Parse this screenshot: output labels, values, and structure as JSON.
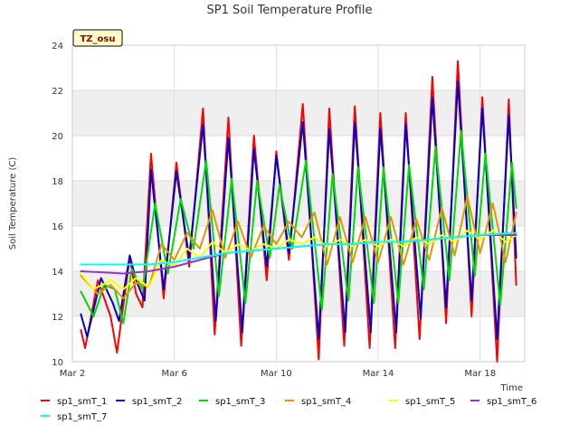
{
  "chart_data": {
    "type": "line",
    "title": "SP1 Soil Temperature Profile",
    "xlabel": "Time",
    "ylabel": "Soil Temperature (C)",
    "ylim": [
      10,
      24
    ],
    "yticks": [
      "10",
      "12",
      "14",
      "16",
      "18",
      "20",
      "22",
      "24"
    ],
    "xlim": [
      "2024-03-02",
      "2024-03-19 18:00"
    ],
    "xticks": [
      {
        "date": "2024-03-02",
        "label": "Mar 2"
      },
      {
        "date": "2024-03-06",
        "label": "Mar 6"
      },
      {
        "date": "2024-03-10",
        "label": "Mar 10"
      },
      {
        "date": "2024-03-14",
        "label": "Mar 14"
      },
      {
        "date": "2024-03-18",
        "label": "Mar 18"
      }
    ],
    "grid": "horizontal bands",
    "legend_position": "bottom",
    "badge": "TZ_osu",
    "series": [
      {
        "name": "sp1_smT_1",
        "color": "#ff0000",
        "data": [
          [
            "2024-03-02 08:00",
            11.4
          ],
          [
            "2024-03-02 12:00",
            10.6
          ],
          [
            "2024-03-03 00:00",
            13.6
          ],
          [
            "2024-03-03 12:00",
            12.0
          ],
          [
            "2024-03-03 18:00",
            10.4
          ],
          [
            "2024-03-04 06:00",
            14.6
          ],
          [
            "2024-03-04 12:00",
            13.0
          ],
          [
            "2024-03-04 18:00",
            12.4
          ],
          [
            "2024-03-05 02:00",
            19.2
          ],
          [
            "2024-03-05 14:00",
            12.8
          ],
          [
            "2024-03-06 02:00",
            18.8
          ],
          [
            "2024-03-06 14:00",
            14.2
          ],
          [
            "2024-03-07 03:00",
            21.2
          ],
          [
            "2024-03-07 14:00",
            11.2
          ],
          [
            "2024-03-08 03:00",
            20.8
          ],
          [
            "2024-03-08 15:00",
            10.7
          ],
          [
            "2024-03-09 03:00",
            20.0
          ],
          [
            "2024-03-09 15:00",
            13.6
          ],
          [
            "2024-03-10 00:00",
            19.3
          ],
          [
            "2024-03-10 12:00",
            14.5
          ],
          [
            "2024-03-11 01:00",
            21.4
          ],
          [
            "2024-03-11 16:00",
            10.1
          ],
          [
            "2024-03-12 02:00",
            21.2
          ],
          [
            "2024-03-12 16:00",
            10.7
          ],
          [
            "2024-03-13 02:00",
            21.3
          ],
          [
            "2024-03-13 16:00",
            10.6
          ],
          [
            "2024-03-14 02:00",
            21.0
          ],
          [
            "2024-03-14 16:00",
            10.6
          ],
          [
            "2024-03-15 02:00",
            21.0
          ],
          [
            "2024-03-15 15:00",
            11.0
          ],
          [
            "2024-03-16 03:00",
            22.6
          ],
          [
            "2024-03-16 16:00",
            11.7
          ],
          [
            "2024-03-17 03:00",
            23.3
          ],
          [
            "2024-03-17 16:00",
            12.0
          ],
          [
            "2024-03-18 02:00",
            21.7
          ],
          [
            "2024-03-18 16:00",
            10.0
          ],
          [
            "2024-03-19 03:00",
            21.6
          ],
          [
            "2024-03-19 10:00",
            13.4
          ]
        ]
      },
      {
        "name": "sp1_smT_2",
        "color": "#0000cc",
        "data": [
          [
            "2024-03-02 08:00",
            12.1
          ],
          [
            "2024-03-02 14:00",
            11.1
          ],
          [
            "2024-03-03 03:00",
            13.7
          ],
          [
            "2024-03-03 14:00",
            12.6
          ],
          [
            "2024-03-03 20:00",
            11.8
          ],
          [
            "2024-03-04 06:00",
            14.7
          ],
          [
            "2024-03-04 12:00",
            13.6
          ],
          [
            "2024-03-04 20:00",
            12.7
          ],
          [
            "2024-03-05 02:00",
            18.5
          ],
          [
            "2024-03-05 14:00",
            13.2
          ],
          [
            "2024-03-06 02:00",
            18.4
          ],
          [
            "2024-03-06 14:00",
            14.6
          ],
          [
            "2024-03-07 03:00",
            20.5
          ],
          [
            "2024-03-07 15:00",
            11.8
          ],
          [
            "2024-03-08 03:00",
            19.9
          ],
          [
            "2024-03-08 16:00",
            11.3
          ],
          [
            "2024-03-09 03:00",
            19.4
          ],
          [
            "2024-03-09 15:00",
            14.2
          ],
          [
            "2024-03-10 00:00",
            19.1
          ],
          [
            "2024-03-10 12:00",
            14.8
          ],
          [
            "2024-03-11 01:00",
            20.6
          ],
          [
            "2024-03-11 16:00",
            11.0
          ],
          [
            "2024-03-12 02:00",
            20.3
          ],
          [
            "2024-03-12 17:00",
            11.3
          ],
          [
            "2024-03-13 02:00",
            20.6
          ],
          [
            "2024-03-13 17:00",
            11.3
          ],
          [
            "2024-03-14 02:00",
            20.3
          ],
          [
            "2024-03-14 17:00",
            11.3
          ],
          [
            "2024-03-15 02:00",
            20.5
          ],
          [
            "2024-03-15 16:00",
            11.9
          ],
          [
            "2024-03-16 03:00",
            21.7
          ],
          [
            "2024-03-16 16:00",
            12.4
          ],
          [
            "2024-03-17 03:00",
            22.4
          ],
          [
            "2024-03-17 16:00",
            12.7
          ],
          [
            "2024-03-18 02:00",
            21.2
          ],
          [
            "2024-03-18 16:00",
            11.0
          ],
          [
            "2024-03-19 03:00",
            20.9
          ],
          [
            "2024-03-19 10:00",
            14.6
          ]
        ]
      },
      {
        "name": "sp1_smT_3",
        "color": "#00dd00",
        "data": [
          [
            "2024-03-02 08:00",
            13.1
          ],
          [
            "2024-03-02 20:00",
            12.0
          ],
          [
            "2024-03-03 06:00",
            13.4
          ],
          [
            "2024-03-03 16:00",
            13.2
          ],
          [
            "2024-03-04 00:00",
            11.7
          ],
          [
            "2024-03-04 08:00",
            14.1
          ],
          [
            "2024-03-04 18:00",
            13.2
          ],
          [
            "2024-03-05 06:00",
            17.0
          ],
          [
            "2024-03-05 18:00",
            13.9
          ],
          [
            "2024-03-06 06:00",
            17.2
          ],
          [
            "2024-03-06 18:00",
            15.0
          ],
          [
            "2024-03-07 06:00",
            18.9
          ],
          [
            "2024-03-07 18:00",
            12.9
          ],
          [
            "2024-03-08 06:00",
            18.1
          ],
          [
            "2024-03-08 19:00",
            12.6
          ],
          [
            "2024-03-09 06:00",
            18.0
          ],
          [
            "2024-03-09 18:00",
            14.6
          ],
          [
            "2024-03-10 03:00",
            17.8
          ],
          [
            "2024-03-10 15:00",
            15.0
          ],
          [
            "2024-03-11 04:00",
            18.9
          ],
          [
            "2024-03-11 19:00",
            12.3
          ],
          [
            "2024-03-12 05:00",
            18.3
          ],
          [
            "2024-03-12 20:00",
            12.7
          ],
          [
            "2024-03-13 05:00",
            18.6
          ],
          [
            "2024-03-13 20:00",
            12.6
          ],
          [
            "2024-03-14 05:00",
            18.6
          ],
          [
            "2024-03-14 19:00",
            12.6
          ],
          [
            "2024-03-15 05:00",
            18.7
          ],
          [
            "2024-03-15 19:00",
            13.2
          ],
          [
            "2024-03-16 06:00",
            19.5
          ],
          [
            "2024-03-16 19:00",
            13.6
          ],
          [
            "2024-03-17 06:00",
            20.2
          ],
          [
            "2024-03-17 19:00",
            13.8
          ],
          [
            "2024-03-18 05:00",
            19.2
          ],
          [
            "2024-03-18 19:00",
            12.5
          ],
          [
            "2024-03-19 06:00",
            18.8
          ],
          [
            "2024-03-19 10:00",
            16.8
          ]
        ]
      },
      {
        "name": "sp1_smT_4",
        "color": "#e69500",
        "data": [
          [
            "2024-03-02 08:00",
            13.8
          ],
          [
            "2024-03-03 00:00",
            13.0
          ],
          [
            "2024-03-03 12:00",
            13.4
          ],
          [
            "2024-03-04 00:00",
            12.8
          ],
          [
            "2024-03-04 12:00",
            13.5
          ],
          [
            "2024-03-05 00:00",
            13.3
          ],
          [
            "2024-03-05 12:00",
            15.2
          ],
          [
            "2024-03-06 00:00",
            14.5
          ],
          [
            "2024-03-06 12:00",
            15.7
          ],
          [
            "2024-03-07 00:00",
            15.0
          ],
          [
            "2024-03-07 12:00",
            16.7
          ],
          [
            "2024-03-08 00:00",
            14.6
          ],
          [
            "2024-03-08 12:00",
            16.2
          ],
          [
            "2024-03-09 00:00",
            14.6
          ],
          [
            "2024-03-09 12:00",
            16.0
          ],
          [
            "2024-03-10 00:00",
            15.2
          ],
          [
            "2024-03-10 12:00",
            16.2
          ],
          [
            "2024-03-11 00:00",
            15.5
          ],
          [
            "2024-03-11 12:00",
            16.6
          ],
          [
            "2024-03-12 00:00",
            14.3
          ],
          [
            "2024-03-12 12:00",
            16.4
          ],
          [
            "2024-03-13 00:00",
            14.4
          ],
          [
            "2024-03-13 12:00",
            16.4
          ],
          [
            "2024-03-14 00:00",
            14.4
          ],
          [
            "2024-03-14 12:00",
            16.4
          ],
          [
            "2024-03-15 00:00",
            14.3
          ],
          [
            "2024-03-15 12:00",
            16.3
          ],
          [
            "2024-03-16 00:00",
            14.5
          ],
          [
            "2024-03-16 12:00",
            16.8
          ],
          [
            "2024-03-17 00:00",
            14.7
          ],
          [
            "2024-03-17 12:00",
            17.3
          ],
          [
            "2024-03-18 00:00",
            14.8
          ],
          [
            "2024-03-18 12:00",
            17.0
          ],
          [
            "2024-03-19 00:00",
            14.4
          ],
          [
            "2024-03-19 10:00",
            16.6
          ]
        ]
      },
      {
        "name": "sp1_smT_5",
        "color": "#ffff00",
        "data": [
          [
            "2024-03-02 08:00",
            13.9
          ],
          [
            "2024-03-02 20:00",
            13.2
          ],
          [
            "2024-03-03 12:00",
            13.6
          ],
          [
            "2024-03-04 00:00",
            13.2
          ],
          [
            "2024-03-04 12:00",
            13.7
          ],
          [
            "2024-03-05 00:00",
            13.3
          ],
          [
            "2024-03-05 12:00",
            14.5
          ],
          [
            "2024-03-06 00:00",
            14.2
          ],
          [
            "2024-03-06 12:00",
            15.0
          ],
          [
            "2024-03-07 00:00",
            14.6
          ],
          [
            "2024-03-07 12:00",
            15.3
          ],
          [
            "2024-03-08 00:00",
            14.8
          ],
          [
            "2024-03-08 12:00",
            15.2
          ],
          [
            "2024-03-09 00:00",
            14.9
          ],
          [
            "2024-03-09 12:00",
            15.2
          ],
          [
            "2024-03-10 00:00",
            15.0
          ],
          [
            "2024-03-10 12:00",
            15.4
          ],
          [
            "2024-03-11 00:00",
            15.2
          ],
          [
            "2024-03-11 12:00",
            15.5
          ],
          [
            "2024-03-12 00:00",
            15.1
          ],
          [
            "2024-03-12 12:00",
            15.4
          ],
          [
            "2024-03-13 00:00",
            15.1
          ],
          [
            "2024-03-13 12:00",
            15.4
          ],
          [
            "2024-03-14 00:00",
            15.1
          ],
          [
            "2024-03-14 12:00",
            15.4
          ],
          [
            "2024-03-15 00:00",
            15.1
          ],
          [
            "2024-03-15 12:00",
            15.5
          ],
          [
            "2024-03-16 00:00",
            15.2
          ],
          [
            "2024-03-16 12:00",
            15.6
          ],
          [
            "2024-03-17 00:00",
            15.3
          ],
          [
            "2024-03-17 12:00",
            15.8
          ],
          [
            "2024-03-18 00:00",
            15.4
          ],
          [
            "2024-03-18 12:00",
            15.8
          ],
          [
            "2024-03-19 00:00",
            15.3
          ],
          [
            "2024-03-19 10:00",
            15.6
          ]
        ]
      },
      {
        "name": "sp1_smT_6",
        "color": "#9933cc",
        "data": [
          [
            "2024-03-02 08:00",
            14.0
          ],
          [
            "2024-03-04 00:00",
            13.9
          ],
          [
            "2024-03-05 00:00",
            14.0
          ],
          [
            "2024-03-06 00:00",
            14.2
          ],
          [
            "2024-03-07 00:00",
            14.5
          ],
          [
            "2024-03-08 00:00",
            14.8
          ],
          [
            "2024-03-09 00:00",
            14.9
          ],
          [
            "2024-03-10 00:00",
            15.0
          ],
          [
            "2024-03-11 00:00",
            15.1
          ],
          [
            "2024-03-12 00:00",
            15.2
          ],
          [
            "2024-03-13 00:00",
            15.2
          ],
          [
            "2024-03-14 00:00",
            15.3
          ],
          [
            "2024-03-15 00:00",
            15.3
          ],
          [
            "2024-03-16 00:00",
            15.4
          ],
          [
            "2024-03-17 00:00",
            15.5
          ],
          [
            "2024-03-18 00:00",
            15.6
          ],
          [
            "2024-03-19 10:00",
            15.6
          ]
        ]
      },
      {
        "name": "sp1_smT_7",
        "color": "#00ffff",
        "data": [
          [
            "2024-03-02 08:00",
            14.3
          ],
          [
            "2024-03-04 00:00",
            14.3
          ],
          [
            "2024-03-05 00:00",
            14.3
          ],
          [
            "2024-03-06 00:00",
            14.4
          ],
          [
            "2024-03-07 00:00",
            14.6
          ],
          [
            "2024-03-08 00:00",
            14.8
          ],
          [
            "2024-03-09 00:00",
            14.9
          ],
          [
            "2024-03-10 00:00",
            15.0
          ],
          [
            "2024-03-11 00:00",
            15.1
          ],
          [
            "2024-03-12 00:00",
            15.2
          ],
          [
            "2024-03-13 00:00",
            15.2
          ],
          [
            "2024-03-14 00:00",
            15.3
          ],
          [
            "2024-03-15 00:00",
            15.3
          ],
          [
            "2024-03-16 00:00",
            15.4
          ],
          [
            "2024-03-17 00:00",
            15.5
          ],
          [
            "2024-03-18 00:00",
            15.6
          ],
          [
            "2024-03-19 10:00",
            15.7
          ]
        ]
      }
    ]
  }
}
